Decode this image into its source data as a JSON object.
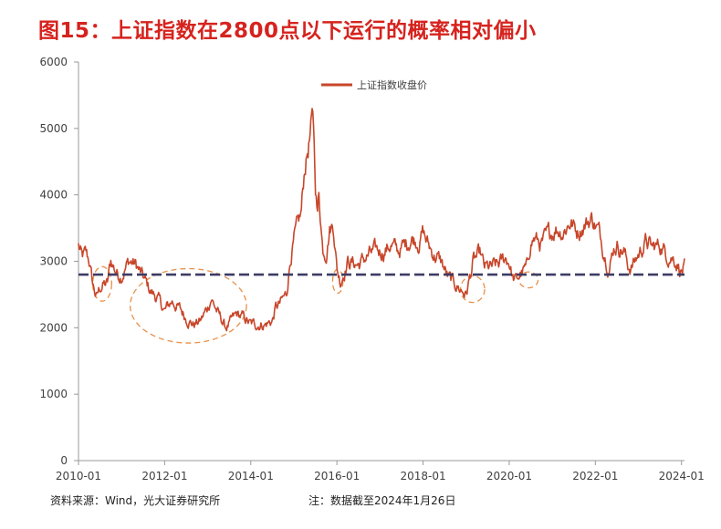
{
  "figure_title": "图15：上证指数在2800点以下运行的概率相对偏小",
  "footer": {
    "source": "资料来源：Wind，光大证券研究所",
    "note": "注：数据截至2024年1月26日"
  },
  "chart_data": {
    "type": "line",
    "title": "图15：上证指数在2800点以下运行的概率相对偏小",
    "xlabel": "",
    "ylabel": "",
    "ylim": [
      0,
      6000
    ],
    "yticks": [
      "0",
      "1000",
      "2000",
      "3000",
      "4000",
      "5000",
      "6000"
    ],
    "xticks": [
      "2010-01",
      "2012-01",
      "2014-01",
      "2016-01",
      "2018-01",
      "2020-01",
      "2022-01",
      "2024-01"
    ],
    "x_range": [
      "2010-01-04",
      "2024-01-26"
    ],
    "legend_position": "top-center",
    "grid": false,
    "colors": {
      "series": "#c8462a",
      "reference_line": "#3c3c64",
      "highlight": "#e8904a"
    },
    "series": [
      {
        "name": "上证指数收盘价",
        "x": [
          2010.0,
          2010.08,
          2010.17,
          2010.25,
          2010.33,
          2010.42,
          2010.5,
          2010.58,
          2010.67,
          2010.75,
          2010.83,
          2010.92,
          2011.0,
          2011.17,
          2011.33,
          2011.5,
          2011.67,
          2011.83,
          2012.0,
          2012.17,
          2012.33,
          2012.5,
          2012.67,
          2012.83,
          2013.0,
          2013.08,
          2013.25,
          2013.42,
          2013.5,
          2013.67,
          2013.83,
          2014.0,
          2014.17,
          2014.33,
          2014.5,
          2014.58,
          2014.67,
          2014.83,
          2014.92,
          2015.0,
          2015.17,
          2015.25,
          2015.33,
          2015.42,
          2015.45,
          2015.5,
          2015.55,
          2015.58,
          2015.67,
          2015.75,
          2015.83,
          2015.92,
          2016.0,
          2016.08,
          2016.25,
          2016.5,
          2016.75,
          2016.92,
          2017.08,
          2017.25,
          2017.42,
          2017.58,
          2017.75,
          2017.92,
          2018.0,
          2018.08,
          2018.25,
          2018.42,
          2018.58,
          2018.75,
          2018.92,
          2019.0,
          2019.17,
          2019.33,
          2019.42,
          2019.58,
          2019.75,
          2019.92,
          2020.0,
          2020.08,
          2020.17,
          2020.25,
          2020.42,
          2020.5,
          2020.58,
          2020.75,
          2020.92,
          2021.08,
          2021.25,
          2021.42,
          2021.58,
          2021.75,
          2021.92,
          2022.08,
          2022.25,
          2022.33,
          2022.42,
          2022.5,
          2022.67,
          2022.75,
          2022.83,
          2023.0,
          2023.17,
          2023.33,
          2023.5,
          2023.67,
          2023.83,
          2023.92,
          2024.0,
          2024.07
        ],
        "values": [
          3240,
          3050,
          3100,
          3000,
          2650,
          2450,
          2600,
          2650,
          2650,
          3000,
          2900,
          2800,
          2800,
          3000,
          2950,
          2750,
          2550,
          2450,
          2250,
          2400,
          2300,
          2150,
          2050,
          2100,
          2300,
          2450,
          2200,
          2000,
          2050,
          2200,
          2150,
          2050,
          2050,
          2050,
          2100,
          2300,
          2350,
          2500,
          3050,
          3300,
          3700,
          4400,
          4700,
          5050,
          5170,
          4200,
          3700,
          4050,
          3200,
          3150,
          3500,
          3550,
          2900,
          2700,
          3000,
          2950,
          3100,
          3150,
          3150,
          3250,
          3150,
          3250,
          3350,
          3300,
          3450,
          3300,
          3100,
          3000,
          2750,
          2650,
          2550,
          2500,
          3000,
          3100,
          2900,
          2900,
          2950,
          3050,
          3000,
          2750,
          2700,
          2800,
          2900,
          3300,
          3350,
          3250,
          3400,
          3500,
          3450,
          3600,
          3450,
          3550,
          3650,
          3450,
          3050,
          2900,
          3200,
          3250,
          3150,
          2950,
          2900,
          3100,
          3300,
          3200,
          3250,
          3100,
          3050,
          2950,
          2850,
          2900
        ]
      }
    ],
    "reference_lines": [
      {
        "label": "2800",
        "value": 2800,
        "style": "dashed"
      }
    ],
    "highlight_regions": [
      {
        "x_center": 2010.55,
        "y_center": 2660,
        "x_radius": 0.22,
        "y_radius": 260
      },
      {
        "x_center": 2012.55,
        "y_center": 2330,
        "x_radius": 1.35,
        "y_radius": 560
      },
      {
        "x_center": 2016.02,
        "y_center": 2700,
        "x_radius": 0.12,
        "y_radius": 180
      },
      {
        "x_center": 2019.15,
        "y_center": 2580,
        "x_radius": 0.28,
        "y_radius": 200
      },
      {
        "x_center": 2020.45,
        "y_center": 2720,
        "x_radius": 0.22,
        "y_radius": 120
      }
    ]
  }
}
